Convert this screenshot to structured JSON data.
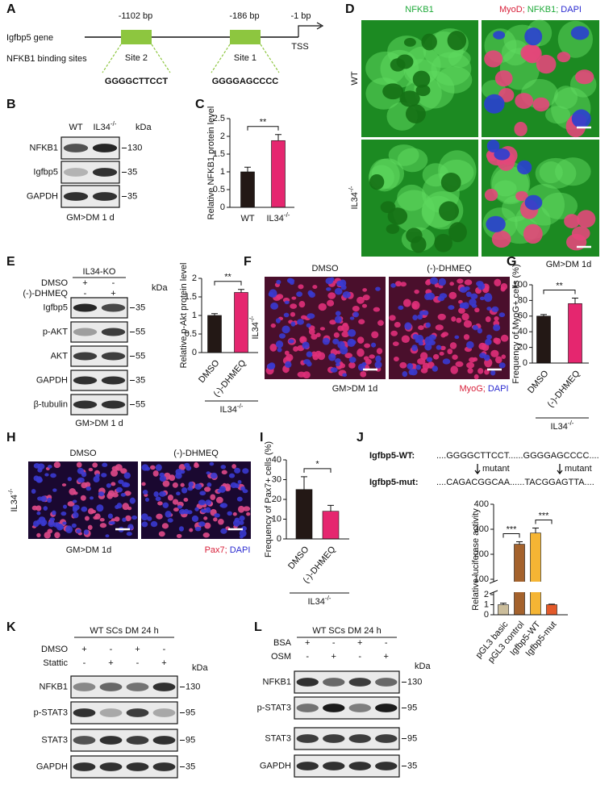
{
  "panel_A": {
    "label": "A",
    "gene": "Igfbp5 gene",
    "binding": "NFKB1 binding sites",
    "positions": [
      "-1102 bp",
      "-186 bp",
      "-1 bp"
    ],
    "tss": "TSS",
    "sites": [
      {
        "name": "Site 2",
        "sequence": "GGGGCTTCCT"
      },
      {
        "name": "Site 1",
        "sequence": "GGGGAGCCCC"
      }
    ]
  },
  "panel_B": {
    "label": "B",
    "lanes": [
      "WT",
      "IL34-/-"
    ],
    "kda_title": "kDa",
    "rows": [
      {
        "name": "NFKB1",
        "kda": "130"
      },
      {
        "name": "Igfbp5",
        "kda": "35"
      },
      {
        "name": "GAPDH",
        "kda": "35"
      }
    ],
    "condition": "GM>DM 1 d"
  },
  "panel_C": {
    "label": "C"
  },
  "panel_D": {
    "label": "D",
    "columns": [
      [
        {
          "text": "NFKB1",
          "color": "#1faa3a"
        }
      ],
      [
        {
          "text": "MyoD;",
          "color": "#d8203a"
        },
        {
          "text": "NFKB1;",
          "color": "#1faa3a"
        },
        {
          "text": "DAPI",
          "color": "#2a2ad0"
        }
      ]
    ],
    "rows": [
      "WT",
      "IL34-/-"
    ],
    "condition": "GM>DM 1d"
  },
  "panel_E": {
    "label": "E",
    "group": "IL34-KO",
    "treatments": [
      {
        "name": "DMSO",
        "signs": [
          "+",
          "-"
        ]
      },
      {
        "name": "(-)-DHMEQ",
        "signs": [
          "-",
          "+"
        ]
      }
    ],
    "kda_title": "kDa",
    "rows": [
      {
        "name": "Igfbp5",
        "kda": "35"
      },
      {
        "name": "p-AKT",
        "kda": "55"
      },
      {
        "name": "AKT",
        "kda": "55"
      },
      {
        "name": "GAPDH",
        "kda": "35"
      },
      {
        "name": "β-tubulin",
        "kda": "55"
      }
    ],
    "condition": "GM>DM 1 d"
  },
  "panel_F": {
    "label": "F",
    "columns": [
      "DMSO",
      "(-)-DHMEQ"
    ],
    "row": "IL34-/-",
    "condition": "GM>DM 1d",
    "stain": [
      {
        "text": "MyoG;",
        "color": "#d8203a"
      },
      {
        "text": "DAPI",
        "color": "#2a2ad0"
      }
    ]
  },
  "panel_G": {
    "label": "G"
  },
  "panel_H": {
    "label": "H",
    "columns": [
      "DMSO",
      "(-)-DHMEQ"
    ],
    "row": "IL34-/-",
    "condition": "GM>DM 1d",
    "stain": [
      {
        "text": "Pax7;",
        "color": "#d8203a"
      },
      {
        "text": "DAPI",
        "color": "#2a2ad0"
      }
    ]
  },
  "panel_I": {
    "label": "I"
  },
  "panel_J": {
    "label": "J",
    "sequences": [
      {
        "name": "Igfbp5-WT:",
        "sequence": "....GGGGCTTCCT......GGGGAGCCCC...."
      },
      {
        "name": "Igfbp5-mut:",
        "sequence": "....CAGACGGCAA......TACGGAGTTA...."
      }
    ],
    "mutation": [
      "mutant",
      "mutant"
    ]
  },
  "panel_K": {
    "label": "K",
    "group": "WT SCs DM 24 h",
    "treatments": [
      {
        "name": "DMSO",
        "signs": [
          "+",
          "-",
          "+",
          "-"
        ]
      },
      {
        "name": "Stattic",
        "signs": [
          "-",
          "+",
          "-",
          "+"
        ]
      }
    ],
    "kda_title": "kDa",
    "rows": [
      {
        "name": "NFKB1",
        "kda": "130"
      },
      {
        "name": "p-STAT3",
        "kda": "95"
      },
      {
        "name": "STAT3",
        "kda": "95"
      },
      {
        "name": "GAPDH",
        "kda": "35"
      }
    ]
  },
  "panel_L": {
    "label": "L",
    "group": "WT SCs DM 24 h",
    "treatments": [
      {
        "name": "BSA",
        "signs": [
          "+",
          "-",
          "+",
          "-"
        ]
      },
      {
        "name": "OSM",
        "signs": [
          "-",
          "+",
          "-",
          "+"
        ]
      }
    ],
    "kda_title": "kDa",
    "rows": [
      {
        "name": "NFKB1",
        "kda": "130"
      },
      {
        "name": "p-STAT3",
        "kda": "95"
      },
      {
        "name": "STAT3",
        "kda": "95"
      },
      {
        "name": "GAPDH",
        "kda": "35"
      }
    ]
  },
  "chart_data": [
    {
      "type": "bar",
      "y_label": "Relative NFKB1 protein level",
      "categories": [
        "WT",
        "IL34-/-"
      ],
      "values": [
        1,
        1.88
      ],
      "errors": [
        0.13,
        0.17
      ],
      "colors": [
        "#231815",
        "#e5266f"
      ],
      "ylim": [
        0,
        2.5
      ],
      "yticks": [
        0,
        0.5,
        1,
        1.5,
        2,
        2.5
      ],
      "significance": [
        "**"
      ]
    },
    {
      "type": "bar",
      "y_label": "Relative p-Akt protein level",
      "categories": [
        "DMSO",
        "(-)-DHMEQ"
      ],
      "values": [
        1,
        1.62
      ],
      "errors": [
        0.05,
        0.08
      ],
      "colors": [
        "#231815",
        "#e5266f"
      ],
      "ylim": [
        0,
        2
      ],
      "yticks": [
        0,
        0.5,
        1,
        1.5,
        2
      ],
      "significance": [
        "**"
      ],
      "group_label": "IL34-/-"
    },
    {
      "type": "bar",
      "y_label": "Frequency of MyoG+ cells (%)",
      "categories": [
        "DMSO",
        "(-)-DHMEQ"
      ],
      "values": [
        60,
        76
      ],
      "errors": [
        2,
        7
      ],
      "colors": [
        "#231815",
        "#e5266f"
      ],
      "ylim": [
        0,
        100
      ],
      "yticks": [
        0,
        20,
        40,
        60,
        80,
        100
      ],
      "significance": [
        "**"
      ],
      "group_label": "IL34-/-"
    },
    {
      "type": "bar",
      "y_label": "Frequency of Pax7+ cells (%)",
      "categories": [
        "DMSO",
        "(-)-DHMEQ"
      ],
      "values": [
        25,
        14
      ],
      "errors": [
        6.5,
        3
      ],
      "colors": [
        "#231815",
        "#e5266f"
      ],
      "ylim": [
        0,
        40
      ],
      "yticks": [
        0,
        10,
        20,
        30,
        40
      ],
      "significance": [
        "*"
      ],
      "group_label": "IL34-/-"
    },
    {
      "type": "bar",
      "y_label": "Relative luciferase activity",
      "categories": [
        "pGL3 basic",
        "pGL3 control",
        "Igfbp5-WT",
        "Igfbp5-mut"
      ],
      "values": [
        1,
        240,
        285,
        1
      ],
      "errors": [
        0.15,
        10,
        20,
        0.05
      ],
      "colors": [
        "#cbbd9b",
        "#a4622c",
        "#f5b534",
        "#e35a2a"
      ],
      "ylim": [
        0,
        400
      ],
      "yticks": [
        0,
        1,
        2,
        100,
        200,
        300,
        400
      ],
      "y_break": [
        2,
        100
      ],
      "significance": [
        "***",
        "***"
      ]
    }
  ]
}
